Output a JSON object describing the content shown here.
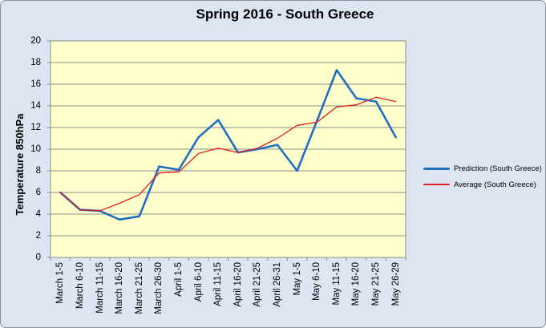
{
  "chart_data": {
    "type": "line",
    "title": "Spring 2016 - South Greece",
    "xlabel": "",
    "ylabel": "Temperature 850hPa",
    "ylim": [
      0,
      20
    ],
    "y_ticks": [
      0,
      2,
      4,
      6,
      8,
      10,
      12,
      14,
      16,
      18,
      20
    ],
    "grid": true,
    "legend_position": "right",
    "categories": [
      "March 1-5",
      "March 6-10",
      "March 11-15",
      "March 16-20",
      "March 21-25",
      "March 26-30",
      "April 1-5",
      "April 6-10",
      "April 11-15",
      "April 16-20",
      "April 21-25",
      "April 26-31",
      "May 1-5",
      "May 6-10",
      "May 11-15",
      "May 16-20",
      "May 21-25",
      "May 26-29"
    ],
    "series": [
      {
        "name": "Prediction (South Greece)",
        "color": "#1F6FC5",
        "line_width": 2.6,
        "values": [
          6.0,
          4.4,
          4.3,
          3.5,
          3.8,
          8.4,
          8.1,
          11.1,
          12.7,
          9.7,
          10.0,
          10.4,
          8.0,
          12.6,
          17.3,
          14.7,
          14.4,
          11.1
        ]
      },
      {
        "name": "Average (South Greece)",
        "color": "#E02020",
        "line_width": 1.3,
        "values": [
          6.0,
          4.4,
          4.3,
          5.0,
          5.8,
          7.8,
          7.9,
          9.6,
          10.1,
          9.7,
          10.1,
          11.0,
          12.2,
          12.5,
          13.9,
          14.1,
          14.8,
          14.4
        ]
      }
    ]
  },
  "colors": {
    "background": "#DCE5F1",
    "plot_background": "#FFFFCC",
    "gridline": "#8C8C8C",
    "plot_border": "#8C8C8C",
    "text": "#000000"
  }
}
